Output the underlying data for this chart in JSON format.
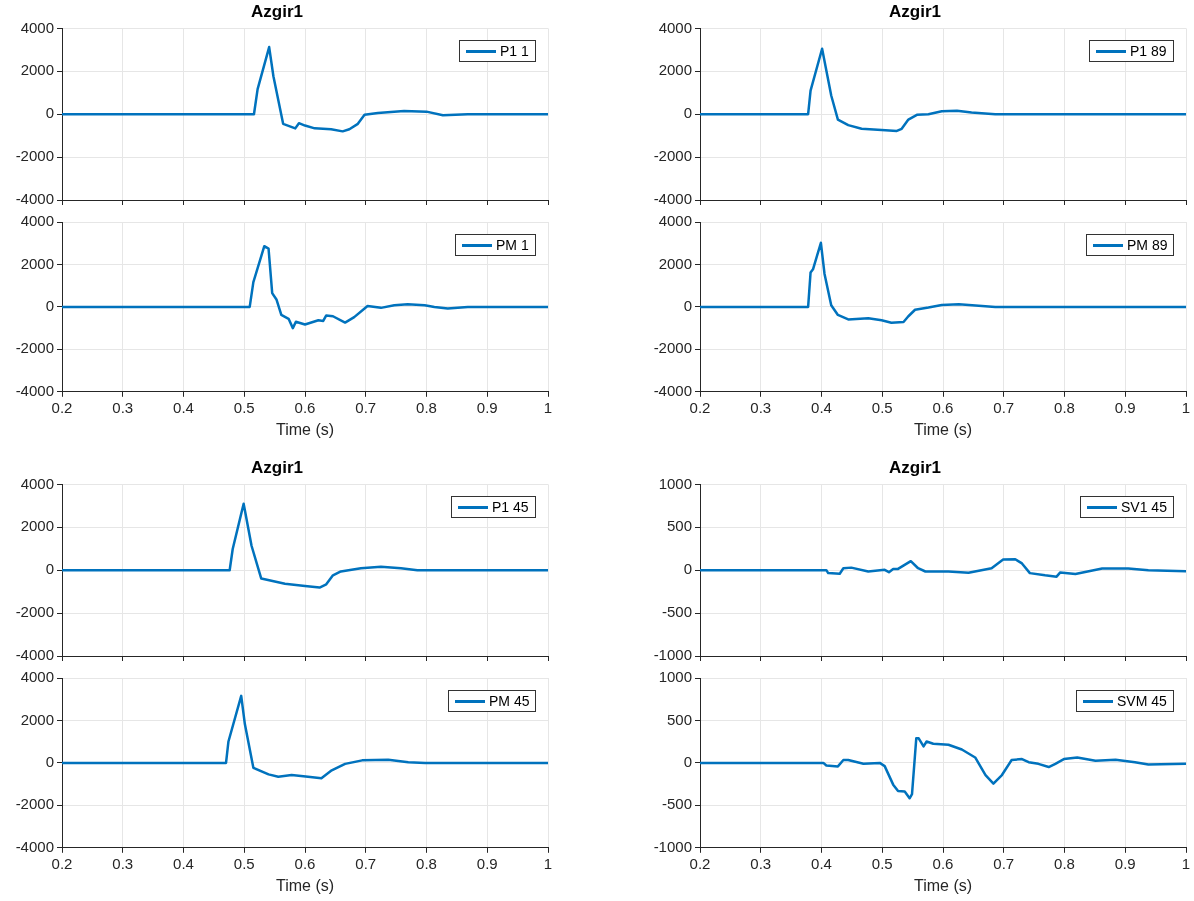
{
  "chart_data": [
    {
      "type": "line",
      "title": "Azgir1",
      "x": [
        0.2,
        0.516,
        0.522,
        0.541,
        0.548,
        0.564,
        0.584,
        0.59,
        0.6,
        0.616,
        0.643,
        0.662,
        0.673,
        0.687,
        0.698,
        0.72,
        0.763,
        0.8,
        0.827,
        0.868,
        1.0
      ],
      "series": [
        {
          "name": "P1 1",
          "color": "#0072bd",
          "values": [
            0,
            0,
            1170,
            3130,
            1770,
            -450,
            -660,
            -420,
            -530,
            -660,
            -700,
            -800,
            -700,
            -450,
            -30,
            60,
            150,
            120,
            -45,
            0,
            0
          ]
        }
      ],
      "xlim": [
        0.2,
        1
      ],
      "xticks": [
        0.2,
        0.3,
        0.4,
        0.5,
        0.6,
        0.7,
        0.8,
        0.9,
        1
      ],
      "ylim": [
        -4000,
        4000
      ],
      "yticks": [
        -4000,
        -2000,
        0,
        2000,
        4000
      ],
      "grid": true,
      "legend": "top right",
      "tick_labels": "y"
    },
    {
      "type": "line",
      "title": "Azgir1",
      "x": [
        0.2,
        0.378,
        0.382,
        0.401,
        0.416,
        0.427,
        0.444,
        0.466,
        0.499,
        0.524,
        0.532,
        0.543,
        0.557,
        0.576,
        0.598,
        0.623,
        0.647,
        0.686,
        1.0
      ],
      "series": [
        {
          "name": "P1 89",
          "color": "#0072bd",
          "values": [
            0,
            0,
            1100,
            3050,
            870,
            -250,
            -510,
            -680,
            -740,
            -780,
            -680,
            -250,
            -30,
            0,
            135,
            165,
            75,
            0,
            0
          ]
        }
      ],
      "xlim": [
        0.2,
        1
      ],
      "xticks": [
        0.2,
        0.3,
        0.4,
        0.5,
        0.6,
        0.7,
        0.8,
        0.9,
        1
      ],
      "ylim": [
        -4000,
        4000
      ],
      "yticks": [
        -4000,
        -2000,
        0,
        2000,
        4000
      ],
      "grid": true,
      "legend": "top right",
      "tick_labels": "y"
    },
    {
      "type": "line",
      "xlabel": "Time (s)",
      "x": [
        0.2,
        0.509,
        0.515,
        0.533,
        0.54,
        0.546,
        0.553,
        0.561,
        0.573,
        0.58,
        0.585,
        0.6,
        0.622,
        0.63,
        0.635,
        0.646,
        0.666,
        0.681,
        0.703,
        0.725,
        0.747,
        0.769,
        0.797,
        0.813,
        0.835,
        0.868,
        1.0
      ],
      "series": [
        {
          "name": "PM 1",
          "color": "#0072bd",
          "values": [
            0,
            0,
            1170,
            2860,
            2750,
            650,
            350,
            -380,
            -560,
            -1000,
            -700,
            -830,
            -630,
            -660,
            -400,
            -440,
            -740,
            -480,
            45,
            -45,
            75,
            120,
            75,
            0,
            -75,
            0,
            0
          ]
        }
      ],
      "xlim": [
        0.2,
        1
      ],
      "xticks": [
        0.2,
        0.3,
        0.4,
        0.5,
        0.6,
        0.7,
        0.8,
        0.9,
        1
      ],
      "ylim": [
        -4000,
        4000
      ],
      "yticks": [
        -4000,
        -2000,
        0,
        2000,
        4000
      ],
      "grid": true,
      "legend": "top right"
    },
    {
      "type": "line",
      "xlabel": "Time (s)",
      "x": [
        0.2,
        0.378,
        0.382,
        0.386,
        0.399,
        0.405,
        0.416,
        0.427,
        0.444,
        0.477,
        0.499,
        0.515,
        0.535,
        0.543,
        0.554,
        0.576,
        0.598,
        0.626,
        0.648,
        0.686,
        1.0
      ],
      "series": [
        {
          "name": "PM 89",
          "color": "#0072bd",
          "values": [
            0,
            0,
            1620,
            1770,
            3020,
            1550,
            75,
            -380,
            -590,
            -530,
            -630,
            -750,
            -710,
            -440,
            -135,
            -30,
            90,
            120,
            75,
            0,
            0
          ]
        }
      ],
      "xlim": [
        0.2,
        1
      ],
      "xticks": [
        0.2,
        0.3,
        0.4,
        0.5,
        0.6,
        0.7,
        0.8,
        0.9,
        1
      ],
      "ylim": [
        -4000,
        4000
      ],
      "yticks": [
        -4000,
        -2000,
        0,
        2000,
        4000
      ],
      "grid": true,
      "legend": "top right"
    },
    {
      "type": "line",
      "title": "Azgir1",
      "x": [
        0.2,
        0.476,
        0.481,
        0.499,
        0.512,
        0.528,
        0.567,
        0.6,
        0.624,
        0.635,
        0.646,
        0.659,
        0.692,
        0.725,
        0.758,
        0.785,
        1.0
      ],
      "series": [
        {
          "name": "P1 45",
          "color": "#0072bd",
          "values": [
            0,
            0,
            990,
            3100,
            1140,
            -390,
            -630,
            -740,
            -810,
            -660,
            -240,
            -60,
            90,
            165,
            90,
            0,
            0
          ]
        }
      ],
      "xlim": [
        0.2,
        1
      ],
      "xticks": [
        0.2,
        0.3,
        0.4,
        0.5,
        0.6,
        0.7,
        0.8,
        0.9,
        1
      ],
      "ylim": [
        -4000,
        4000
      ],
      "yticks": [
        -4000,
        -2000,
        0,
        2000,
        4000
      ],
      "grid": true,
      "legend": "top right",
      "tick_labels": "y"
    },
    {
      "type": "line",
      "title": "Azgir1",
      "x": [
        0.2,
        0.408,
        0.411,
        0.43,
        0.436,
        0.449,
        0.477,
        0.504,
        0.511,
        0.518,
        0.526,
        0.547,
        0.559,
        0.571,
        0.609,
        0.642,
        0.68,
        0.699,
        0.719,
        0.73,
        0.743,
        0.768,
        0.787,
        0.793,
        0.818,
        0.862,
        0.905,
        0.938,
        1.0
      ],
      "series": [
        {
          "name": "SV1 45",
          "color": "#0072bd",
          "values": [
            0,
            0,
            -34,
            -41,
            23,
            30,
            -15,
            4,
            -23,
            15,
            15,
            105,
            23,
            -15,
            -15,
            -30,
            23,
            124,
            128,
            79,
            -34,
            -60,
            -75,
            -26,
            -45,
            19,
            19,
            0,
            -11
          ]
        }
      ],
      "xlim": [
        0.2,
        1
      ],
      "xticks": [
        0.2,
        0.3,
        0.4,
        0.5,
        0.6,
        0.7,
        0.8,
        0.9,
        1
      ],
      "ylim": [
        -1000,
        1000
      ],
      "yticks": [
        -1000,
        -500,
        0,
        500,
        1000
      ],
      "grid": true,
      "legend": "top right",
      "tick_labels": "y"
    },
    {
      "type": "line",
      "xlabel": "Time (s)",
      "x": [
        0.2,
        0.47,
        0.474,
        0.495,
        0.501,
        0.515,
        0.54,
        0.556,
        0.578,
        0.605,
        0.627,
        0.644,
        0.666,
        0.694,
        0.737,
        0.77,
        0.798,
        1.0
      ],
      "series": [
        {
          "name": "PM 45",
          "color": "#0072bd",
          "values": [
            0,
            0,
            1010,
            3160,
            1830,
            -230,
            -540,
            -650,
            -570,
            -650,
            -720,
            -350,
            -45,
            120,
            150,
            30,
            0,
            0
          ]
        }
      ],
      "xlim": [
        0.2,
        1
      ],
      "xticks": [
        0.2,
        0.3,
        0.4,
        0.5,
        0.6,
        0.7,
        0.8,
        0.9,
        1
      ],
      "ylim": [
        -4000,
        4000
      ],
      "yticks": [
        -4000,
        -2000,
        0,
        2000,
        4000
      ],
      "grid": true,
      "legend": "top right"
    },
    {
      "type": "line",
      "xlabel": "Time (s)",
      "x": [
        0.2,
        0.403,
        0.408,
        0.427,
        0.436,
        0.444,
        0.469,
        0.496,
        0.504,
        0.518,
        0.526,
        0.537,
        0.545,
        0.549,
        0.556,
        0.56,
        0.568,
        0.573,
        0.584,
        0.609,
        0.631,
        0.653,
        0.67,
        0.683,
        0.697,
        0.713,
        0.73,
        0.741,
        0.757,
        0.774,
        0.785,
        0.799,
        0.821,
        0.851,
        0.884,
        0.916,
        0.938,
        1.0
      ],
      "series": [
        {
          "name": "SVM 45",
          "color": "#0072bd",
          "values": [
            0,
            0,
            -30,
            -41,
            34,
            34,
            -11,
            0,
            -38,
            -256,
            -331,
            -338,
            -417,
            -368,
            289,
            289,
            195,
            252,
            226,
            214,
            158,
            64,
            -143,
            -244,
            -143,
            34,
            45,
            8,
            -11,
            -49,
            -11,
            45,
            64,
            26,
            38,
            8,
            -19,
            -11
          ]
        }
      ],
      "xlim": [
        0.2,
        1
      ],
      "xticks": [
        0.2,
        0.3,
        0.4,
        0.5,
        0.6,
        0.7,
        0.8,
        0.9,
        1
      ],
      "ylim": [
        -1000,
        1000
      ],
      "yticks": [
        -1000,
        -500,
        0,
        500,
        1000
      ],
      "grid": true,
      "legend": "top right"
    }
  ]
}
